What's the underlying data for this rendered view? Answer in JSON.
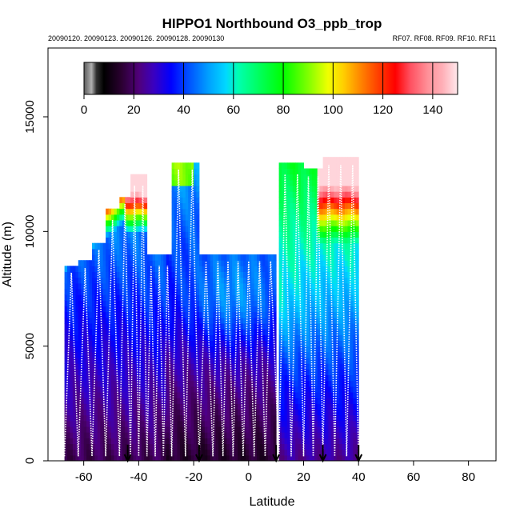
{
  "chart_data": {
    "type": "heatmap",
    "title": "HIPPO1 Northbound O3_ppb_trop",
    "subtitle_left": "20090120. 20090123. 20090126. 20090128. 20090130",
    "subtitle_right": "RF07. RF08. RF09. RF10. RF11",
    "xlabel": "Latitude",
    "ylabel": "Altitude (m)",
    "xlim": [
      -73,
      90
    ],
    "ylim": [
      0,
      18000
    ],
    "x_ticks": [
      -60,
      -40,
      -20,
      0,
      20,
      40,
      60,
      80
    ],
    "y_ticks": [
      0,
      5000,
      10000,
      15000
    ],
    "colorbar": {
      "min": 0,
      "max": 150,
      "ticks": [
        0,
        20,
        40,
        60,
        80,
        100,
        120,
        140
      ],
      "stops": [
        {
          "v": 0,
          "c": "#5a5a5a"
        },
        {
          "v": 3,
          "c": "#b0b0b0"
        },
        {
          "v": 5,
          "c": "#303030"
        },
        {
          "v": 8,
          "c": "#000000"
        },
        {
          "v": 15,
          "c": "#2a0030"
        },
        {
          "v": 22,
          "c": "#50007a"
        },
        {
          "v": 28,
          "c": "#3a00c0"
        },
        {
          "v": 35,
          "c": "#0000ff"
        },
        {
          "v": 42,
          "c": "#0050ff"
        },
        {
          "v": 50,
          "c": "#00a0ff"
        },
        {
          "v": 57,
          "c": "#00d8ff"
        },
        {
          "v": 62,
          "c": "#00ffb0"
        },
        {
          "v": 70,
          "c": "#00ff60"
        },
        {
          "v": 80,
          "c": "#00ff00"
        },
        {
          "v": 90,
          "c": "#80ff00"
        },
        {
          "v": 98,
          "c": "#f0ff00"
        },
        {
          "v": 104,
          "c": "#ffd000"
        },
        {
          "v": 110,
          "c": "#ff9000"
        },
        {
          "v": 118,
          "c": "#ff4000"
        },
        {
          "v": 125,
          "c": "#ff0000"
        },
        {
          "v": 131,
          "c": "#ff5060"
        },
        {
          "v": 138,
          "c": "#ff9098"
        },
        {
          "v": 144,
          "c": "#ffb0b8"
        },
        {
          "v": 150,
          "c": "#ffe8ec"
        }
      ]
    },
    "profile_segments": [
      {
        "lat_start": -67,
        "lat_end": -62,
        "max_alt": 8500
      },
      {
        "lat_start": -62,
        "lat_end": -57,
        "max_alt": 8700
      },
      {
        "lat_start": -57,
        "lat_end": -52,
        "max_alt": 9500
      },
      {
        "lat_start": -52,
        "lat_end": -47,
        "max_alt": 10800
      },
      {
        "lat_start": -47,
        "lat_end": -43,
        "max_alt": 11500
      },
      {
        "lat_start": -43,
        "lat_end": -37,
        "max_alt": 12300
      },
      {
        "lat_start": -37,
        "lat_end": -31,
        "max_alt": 8800
      },
      {
        "lat_start": -31,
        "lat_end": -28,
        "max_alt": 8800
      },
      {
        "lat_start": -28,
        "lat_end": -23,
        "max_alt": 13000
      },
      {
        "lat_start": -23,
        "lat_end": -18,
        "max_alt": 13000
      },
      {
        "lat_start": -18,
        "lat_end": -13,
        "max_alt": 9000
      },
      {
        "lat_start": -13,
        "lat_end": -2,
        "max_alt": 9000
      },
      {
        "lat_start": -2,
        "lat_end": 10,
        "max_alt": 9000
      },
      {
        "lat_start": 11,
        "lat_end": 20,
        "max_alt": 12800
      },
      {
        "lat_start": 20,
        "lat_end": 27,
        "max_alt": 12700
      },
      {
        "lat_start": 27,
        "lat_end": 40,
        "max_alt": 13200
      }
    ],
    "flight_arrows_lat": [
      -44,
      -18,
      10,
      27,
      40
    ]
  }
}
